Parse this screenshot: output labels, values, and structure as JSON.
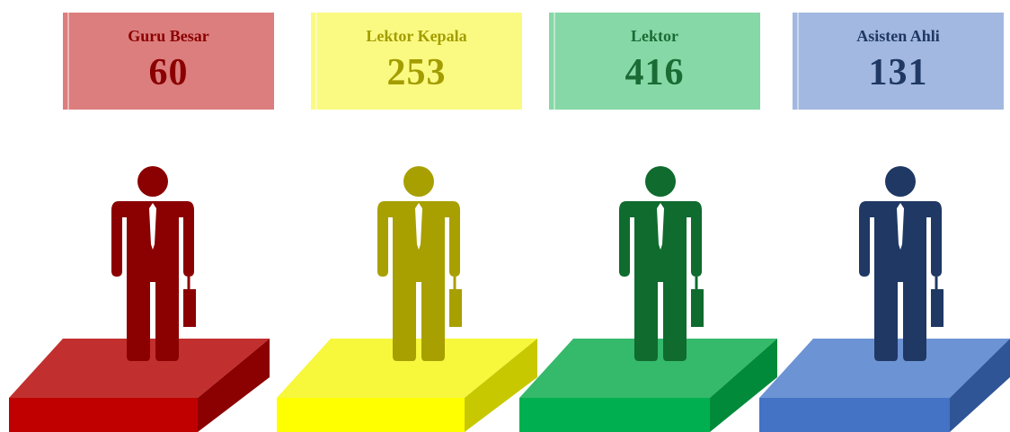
{
  "cards": [
    {
      "label": "Guru Besar",
      "value": 60
    },
    {
      "label": "Lektor Kepala",
      "value": 253
    },
    {
      "label": "Lektor",
      "value": 416
    },
    {
      "label": "Asisten Ahli",
      "value": 131
    }
  ]
}
